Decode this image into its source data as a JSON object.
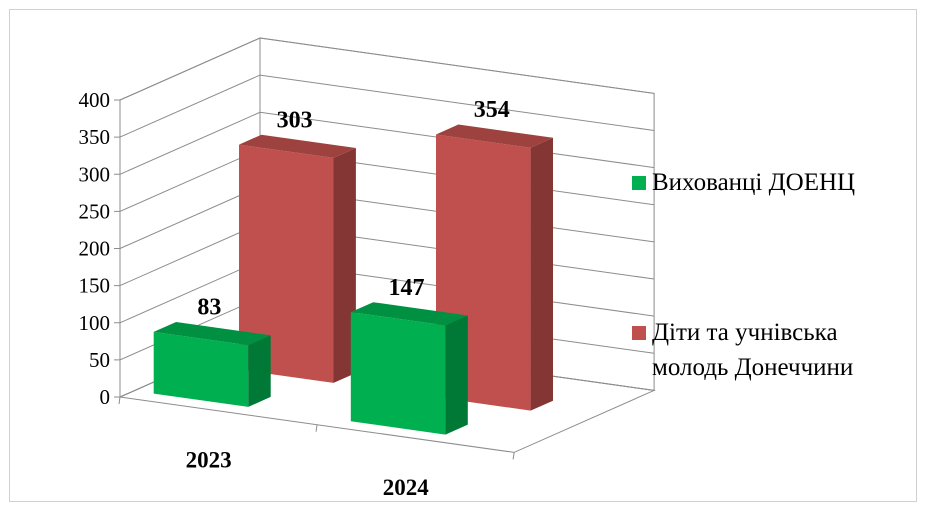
{
  "chart_data": {
    "type": "bar",
    "style": "3d-clustered-depth",
    "title": "",
    "xlabel": "",
    "ylabel": "",
    "ylim": [
      0,
      400
    ],
    "yticks": [
      0,
      50,
      100,
      150,
      200,
      250,
      300,
      350,
      400
    ],
    "grid": true,
    "legend_position": "right",
    "categories": [
      "2023",
      "2024"
    ],
    "series": [
      {
        "name": "Вихованці ДОЕНЦ",
        "values": [
          83,
          147
        ],
        "color": "#00b050"
      },
      {
        "name": "Діти та учнівська молодь Донеччини",
        "legend_lines": [
          "Діти та учнівська",
          "молодь Донеччини"
        ],
        "values": [
          303,
          354
        ],
        "color": "#c0504d"
      }
    ]
  }
}
